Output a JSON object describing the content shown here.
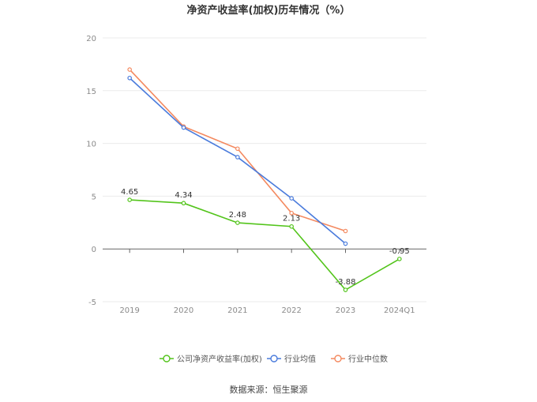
{
  "chart_data": {
    "type": "line",
    "title": "净资产收益率(加权)历年情况（%）",
    "categories": [
      "2019",
      "2020",
      "2021",
      "2022",
      "2023",
      "2024Q1"
    ],
    "ylim": [
      -5,
      20
    ],
    "yticks": [
      -5,
      0,
      5,
      10,
      15,
      20
    ],
    "grid": true,
    "legend_position": "bottom",
    "series": [
      {
        "name": "公司净资产收益率(加权)",
        "color": "#52c41a",
        "values": [
          4.65,
          4.34,
          2.48,
          2.13,
          -3.88,
          -0.95
        ],
        "labels": [
          "4.65",
          "4.34",
          "2.48",
          "2.13",
          "-3.88",
          "-0.95"
        ]
      },
      {
        "name": "行业均值",
        "color": "#4a7bdc",
        "values": [
          16.2,
          11.5,
          8.7,
          4.8,
          0.5,
          null
        ]
      },
      {
        "name": "行业中位数",
        "color": "#f4895f",
        "values": [
          17.0,
          11.6,
          9.5,
          3.4,
          1.7,
          null
        ]
      }
    ]
  },
  "source_text": "数据来源：恒生聚源"
}
